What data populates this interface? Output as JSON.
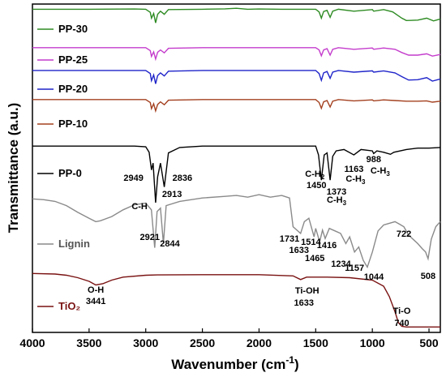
{
  "chart_data": {
    "type": "line",
    "title": "",
    "xlabel": "Wavenumber (cm",
    "xlabel_sup": "-1",
    "xlabel_close": ")",
    "ylabel": "Transmittance (a.u.)",
    "xlim": [
      4000,
      400
    ],
    "x_reversed": true,
    "x_ticks": [
      "4000",
      "3500",
      "3000",
      "2500",
      "2000",
      "1500",
      "1000",
      "500"
    ],
    "y_ticks_shown": false,
    "grid": false,
    "legend": "inline labels at left of each trace",
    "series": [
      {
        "name": "PP-30",
        "color": "#2e8b23",
        "points": [
          [
            4000,
            0.93
          ],
          [
            3500,
            0.93
          ],
          [
            3100,
            0.935
          ],
          [
            3000,
            0.93
          ],
          [
            2960,
            0.85
          ],
          [
            2949,
            0.7
          ],
          [
            2930,
            0.82
          ],
          [
            2913,
            0.58
          ],
          [
            2895,
            0.8
          ],
          [
            2870,
            0.88
          ],
          [
            2836,
            0.8
          ],
          [
            2800,
            0.92
          ],
          [
            2500,
            0.93
          ],
          [
            2300,
            0.94
          ],
          [
            2200,
            0.955
          ],
          [
            2100,
            0.93
          ],
          [
            2000,
            0.935
          ],
          [
            1800,
            0.93
          ],
          [
            1500,
            0.93
          ],
          [
            1470,
            0.86
          ],
          [
            1450,
            0.7
          ],
          [
            1430,
            0.87
          ],
          [
            1400,
            0.9
          ],
          [
            1373,
            0.72
          ],
          [
            1350,
            0.88
          ],
          [
            1300,
            0.93
          ],
          [
            1163,
            0.88
          ],
          [
            1000,
            0.92
          ],
          [
            988,
            0.88
          ],
          [
            900,
            0.92
          ],
          [
            820,
            0.86
          ],
          [
            740,
            0.7
          ],
          [
            700,
            0.64
          ],
          [
            600,
            0.65
          ],
          [
            520,
            0.7
          ],
          [
            460,
            0.63
          ],
          [
            400,
            0.68
          ]
        ]
      },
      {
        "name": "PP-25",
        "color": "#c43ccc",
        "points": [
          [
            4000,
            0.93
          ],
          [
            3500,
            0.93
          ],
          [
            3000,
            0.93
          ],
          [
            2960,
            0.84
          ],
          [
            2949,
            0.66
          ],
          [
            2930,
            0.8
          ],
          [
            2913,
            0.58
          ],
          [
            2895,
            0.79
          ],
          [
            2870,
            0.86
          ],
          [
            2836,
            0.77
          ],
          [
            2800,
            0.91
          ],
          [
            2500,
            0.93
          ],
          [
            2000,
            0.93
          ],
          [
            1500,
            0.93
          ],
          [
            1470,
            0.86
          ],
          [
            1450,
            0.68
          ],
          [
            1430,
            0.86
          ],
          [
            1400,
            0.9
          ],
          [
            1373,
            0.7
          ],
          [
            1350,
            0.88
          ],
          [
            1300,
            0.93
          ],
          [
            1163,
            0.88
          ],
          [
            1000,
            0.92
          ],
          [
            988,
            0.88
          ],
          [
            900,
            0.92
          ],
          [
            800,
            0.88
          ],
          [
            740,
            0.78
          ],
          [
            680,
            0.7
          ],
          [
            600,
            0.7
          ],
          [
            520,
            0.74
          ],
          [
            470,
            0.67
          ],
          [
            400,
            0.72
          ]
        ]
      },
      {
        "name": "PP-20",
        "color": "#1f24c9",
        "points": [
          [
            4000,
            0.93
          ],
          [
            3500,
            0.93
          ],
          [
            3000,
            0.93
          ],
          [
            2960,
            0.84
          ],
          [
            2949,
            0.63
          ],
          [
            2930,
            0.8
          ],
          [
            2913,
            0.54
          ],
          [
            2895,
            0.78
          ],
          [
            2870,
            0.86
          ],
          [
            2836,
            0.77
          ],
          [
            2800,
            0.91
          ],
          [
            2500,
            0.93
          ],
          [
            2000,
            0.93
          ],
          [
            1500,
            0.93
          ],
          [
            1470,
            0.84
          ],
          [
            1450,
            0.64
          ],
          [
            1430,
            0.86
          ],
          [
            1400,
            0.9
          ],
          [
            1373,
            0.7
          ],
          [
            1350,
            0.88
          ],
          [
            1300,
            0.93
          ],
          [
            1163,
            0.88
          ],
          [
            1000,
            0.92
          ],
          [
            988,
            0.88
          ],
          [
            900,
            0.92
          ],
          [
            800,
            0.86
          ],
          [
            740,
            0.75
          ],
          [
            680,
            0.65
          ],
          [
            600,
            0.66
          ],
          [
            520,
            0.72
          ],
          [
            470,
            0.62
          ],
          [
            400,
            0.68
          ]
        ]
      },
      {
        "name": "PP-10",
        "color": "#a3401f",
        "points": [
          [
            4000,
            0.93
          ],
          [
            3500,
            0.93
          ],
          [
            3000,
            0.93
          ],
          [
            2960,
            0.84
          ],
          [
            2949,
            0.65
          ],
          [
            2930,
            0.8
          ],
          [
            2913,
            0.58
          ],
          [
            2895,
            0.78
          ],
          [
            2870,
            0.86
          ],
          [
            2836,
            0.77
          ],
          [
            2800,
            0.91
          ],
          [
            2500,
            0.93
          ],
          [
            2000,
            0.93
          ],
          [
            1500,
            0.93
          ],
          [
            1470,
            0.84
          ],
          [
            1450,
            0.66
          ],
          [
            1430,
            0.86
          ],
          [
            1400,
            0.9
          ],
          [
            1373,
            0.7
          ],
          [
            1350,
            0.88
          ],
          [
            1300,
            0.93
          ],
          [
            1163,
            0.89
          ],
          [
            1000,
            0.92
          ],
          [
            988,
            0.89
          ],
          [
            900,
            0.92
          ],
          [
            800,
            0.9
          ],
          [
            700,
            0.88
          ],
          [
            600,
            0.88
          ],
          [
            520,
            0.89
          ],
          [
            470,
            0.85
          ],
          [
            400,
            0.88
          ]
        ]
      },
      {
        "name": "PP-0",
        "color": "#000000",
        "points": [
          [
            4000,
            0.95
          ],
          [
            3500,
            0.95
          ],
          [
            3100,
            0.95
          ],
          [
            3000,
            0.94
          ],
          [
            2970,
            0.86
          ],
          [
            2949,
            0.6
          ],
          [
            2935,
            0.7
          ],
          [
            2913,
            0.12
          ],
          [
            2895,
            0.5
          ],
          [
            2870,
            0.7
          ],
          [
            2836,
            0.35
          ],
          [
            2800,
            0.85
          ],
          [
            2700,
            0.93
          ],
          [
            2500,
            0.95
          ],
          [
            2000,
            0.95
          ],
          [
            1500,
            0.95
          ],
          [
            1475,
            0.82
          ],
          [
            1450,
            0.45
          ],
          [
            1425,
            0.82
          ],
          [
            1400,
            0.85
          ],
          [
            1373,
            0.45
          ],
          [
            1350,
            0.8
          ],
          [
            1320,
            0.88
          ],
          [
            1250,
            0.9
          ],
          [
            1163,
            0.82
          ],
          [
            1100,
            0.9
          ],
          [
            1000,
            0.88
          ],
          [
            988,
            0.84
          ],
          [
            960,
            0.88
          ],
          [
            900,
            0.86
          ],
          [
            840,
            0.83
          ],
          [
            810,
            0.86
          ],
          [
            700,
            0.9
          ],
          [
            600,
            0.92
          ],
          [
            500,
            0.92
          ],
          [
            400,
            0.93
          ]
        ]
      },
      {
        "name": "Lignin",
        "color": "#8a8a8a",
        "points": [
          [
            4000,
            0.93
          ],
          [
            3900,
            0.92
          ],
          [
            3800,
            0.9
          ],
          [
            3700,
            0.85
          ],
          [
            3600,
            0.77
          ],
          [
            3500,
            0.7
          ],
          [
            3441,
            0.66
          ],
          [
            3400,
            0.67
          ],
          [
            3300,
            0.72
          ],
          [
            3200,
            0.8
          ],
          [
            3100,
            0.86
          ],
          [
            3000,
            0.88
          ],
          [
            2950,
            0.8
          ],
          [
            2921,
            0.35
          ],
          [
            2900,
            0.78
          ],
          [
            2870,
            0.82
          ],
          [
            2844,
            0.4
          ],
          [
            2820,
            0.85
          ],
          [
            2700,
            0.9
          ],
          [
            2500,
            0.94
          ],
          [
            2300,
            0.96
          ],
          [
            2200,
            0.97
          ],
          [
            2100,
            0.95
          ],
          [
            2000,
            0.98
          ],
          [
            1900,
            0.95
          ],
          [
            1800,
            0.97
          ],
          [
            1731,
            0.94
          ],
          [
            1700,
            0.6
          ],
          [
            1633,
            0.52
          ],
          [
            1600,
            0.66
          ],
          [
            1560,
            0.7
          ],
          [
            1514,
            0.48
          ],
          [
            1500,
            0.58
          ],
          [
            1465,
            0.42
          ],
          [
            1440,
            0.56
          ],
          [
            1416,
            0.46
          ],
          [
            1380,
            0.58
          ],
          [
            1330,
            0.55
          ],
          [
            1280,
            0.52
          ],
          [
            1234,
            0.4
          ],
          [
            1200,
            0.48
          ],
          [
            1157,
            0.3
          ],
          [
            1120,
            0.36
          ],
          [
            1080,
            0.2
          ],
          [
            1044,
            0.12
          ],
          [
            1000,
            0.3
          ],
          [
            950,
            0.55
          ],
          [
            900,
            0.62
          ],
          [
            850,
            0.64
          ],
          [
            800,
            0.66
          ],
          [
            760,
            0.63
          ],
          [
            722,
            0.6
          ],
          [
            680,
            0.5
          ],
          [
            640,
            0.45
          ],
          [
            600,
            0.4
          ],
          [
            560,
            0.34
          ],
          [
            530,
            0.3
          ],
          [
            508,
            0.22
          ],
          [
            480,
            0.45
          ],
          [
            440,
            0.6
          ],
          [
            400,
            0.66
          ]
        ]
      },
      {
        "name": "TiO₂",
        "color": "#7a1212",
        "points": [
          [
            4000,
            0.93
          ],
          [
            3800,
            0.92
          ],
          [
            3700,
            0.9
          ],
          [
            3600,
            0.86
          ],
          [
            3500,
            0.8
          ],
          [
            3441,
            0.74
          ],
          [
            3380,
            0.76
          ],
          [
            3300,
            0.82
          ],
          [
            3200,
            0.87
          ],
          [
            3000,
            0.9
          ],
          [
            2900,
            0.905
          ],
          [
            2500,
            0.91
          ],
          [
            2000,
            0.91
          ],
          [
            1700,
            0.89
          ],
          [
            1633,
            0.83
          ],
          [
            1580,
            0.87
          ],
          [
            1400,
            0.87
          ],
          [
            1200,
            0.86
          ],
          [
            1000,
            0.82
          ],
          [
            900,
            0.72
          ],
          [
            850,
            0.55
          ],
          [
            800,
            0.3
          ],
          [
            770,
            0.12
          ],
          [
            740,
            0.06
          ],
          [
            700,
            0.05
          ],
          [
            600,
            0.05
          ],
          [
            500,
            0.05
          ],
          [
            400,
            0.05
          ]
        ]
      }
    ],
    "annotations": {
      "pp0": [
        {
          "text": "2949",
          "x": 2949
        },
        {
          "text": "2836",
          "x": 2836
        },
        {
          "text": "2913",
          "x": 2913
        },
        {
          "text": "C-H",
          "x": 2913
        },
        {
          "text": "C-H",
          "sub": "2",
          "x": 1450
        },
        {
          "text": "1450",
          "x": 1450
        },
        {
          "text": "1373",
          "x": 1373
        },
        {
          "text": "C-H",
          "sub": "3",
          "x": 1373
        },
        {
          "text": "1163",
          "x": 1163
        },
        {
          "text": "C-H",
          "sub": "3",
          "x": 1163
        },
        {
          "text": "988",
          "x": 988
        },
        {
          "text": "C-H",
          "sub": "3",
          "x": 988
        }
      ],
      "lignin": [
        {
          "text": "2921",
          "x": 2921
        },
        {
          "text": "2844",
          "x": 2844
        },
        {
          "text": "1731",
          "x": 1731
        },
        {
          "text": "1633",
          "x": 1633
        },
        {
          "text": "1514",
          "x": 1514
        },
        {
          "text": "1465",
          "x": 1465
        },
        {
          "text": "1416",
          "x": 1416
        },
        {
          "text": "1234",
          "x": 1234
        },
        {
          "text": "1157",
          "x": 1157
        },
        {
          "text": "1044",
          "x": 1044
        },
        {
          "text": "722",
          "x": 722
        },
        {
          "text": "508",
          "x": 508
        }
      ],
      "tio2": [
        {
          "text": "O-H",
          "x": 3441
        },
        {
          "text": "3441",
          "x": 3441
        },
        {
          "text": "Ti-OH",
          "x": 1633
        },
        {
          "text": "1633",
          "x": 1633
        },
        {
          "text": "Ti-O",
          "x": 740
        },
        {
          "text": "740",
          "x": 740
        }
      ]
    }
  }
}
